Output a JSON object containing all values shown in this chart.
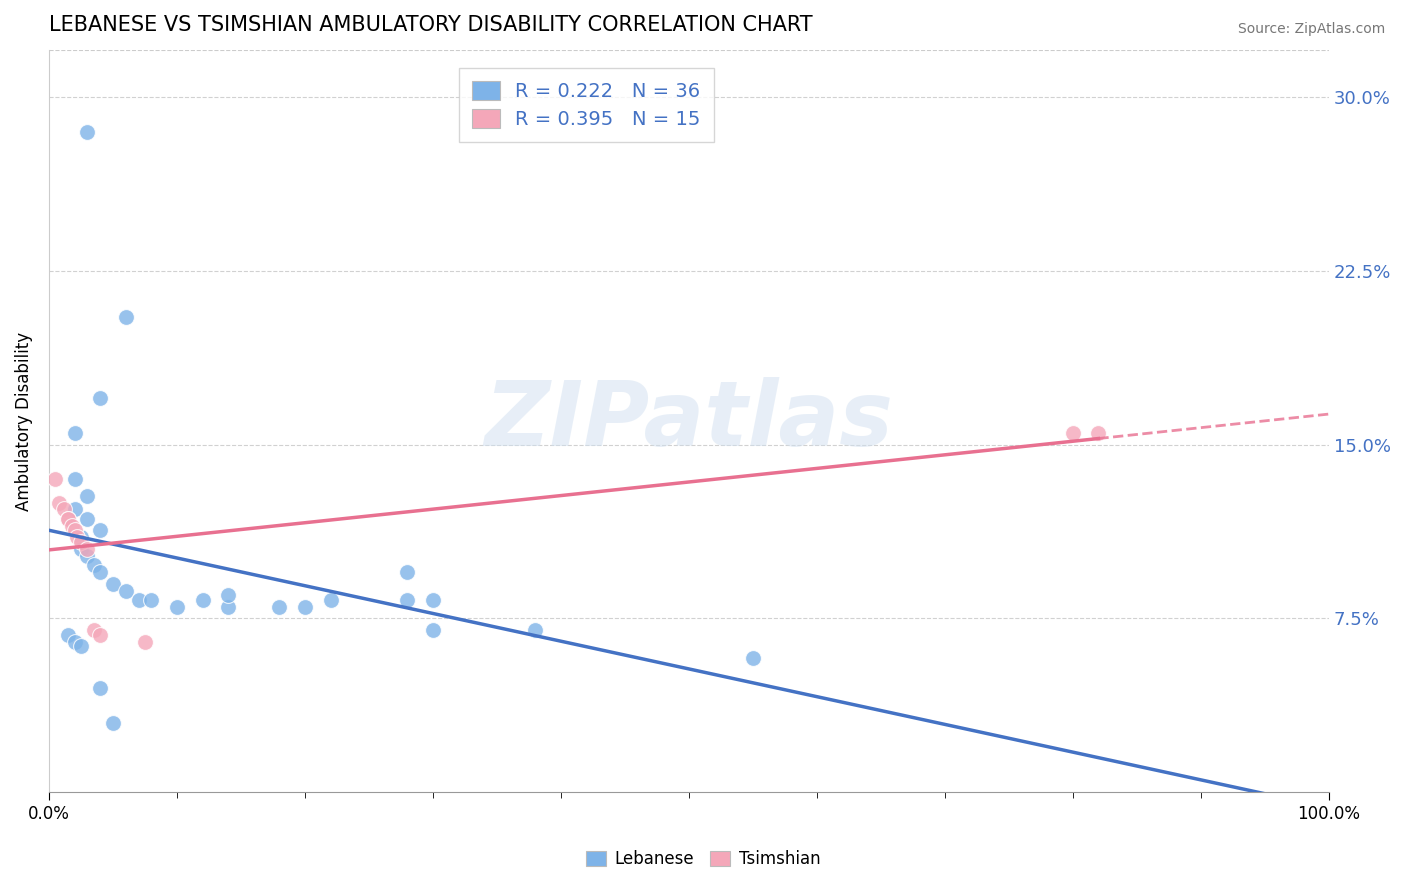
{
  "title": "LEBANESE VS TSIMSHIAN AMBULATORY DISABILITY CORRELATION CHART",
  "source": "Source: ZipAtlas.com",
  "ylabel": "Ambulatory Disability",
  "xlim": [
    0.0,
    1.0
  ],
  "ylim": [
    0.0,
    0.32
  ],
  "yticks": [
    0.075,
    0.15,
    0.225,
    0.3
  ],
  "ytick_labels": [
    "7.5%",
    "15.0%",
    "22.5%",
    "30.0%"
  ],
  "legend_R1": "R = 0.222",
  "legend_N1": "N = 36",
  "legend_R2": "R = 0.395",
  "legend_N2": "N = 15",
  "color_lebanese": "#7EB3E8",
  "color_tsimshian": "#F4A7B9",
  "color_line_lebanese": "#4472C4",
  "color_line_tsimshian": "#E87090",
  "lebanese_x": [
    0.03,
    0.06,
    0.04,
    0.02,
    0.02,
    0.03,
    0.02,
    0.03,
    0.04,
    0.025,
    0.025,
    0.03,
    0.035,
    0.04,
    0.05,
    0.06,
    0.07,
    0.08,
    0.1,
    0.12,
    0.14,
    0.14,
    0.18,
    0.2,
    0.22,
    0.28,
    0.28,
    0.3,
    0.3,
    0.38,
    0.015,
    0.02,
    0.025,
    0.55,
    0.04,
    0.05
  ],
  "lebanese_y": [
    0.285,
    0.205,
    0.17,
    0.155,
    0.135,
    0.128,
    0.122,
    0.118,
    0.113,
    0.11,
    0.105,
    0.102,
    0.098,
    0.095,
    0.09,
    0.087,
    0.083,
    0.083,
    0.08,
    0.083,
    0.08,
    0.085,
    0.08,
    0.08,
    0.083,
    0.083,
    0.095,
    0.083,
    0.07,
    0.07,
    0.068,
    0.065,
    0.063,
    0.058,
    0.045,
    0.03
  ],
  "tsimshian_x": [
    0.005,
    0.008,
    0.012,
    0.015,
    0.015,
    0.018,
    0.02,
    0.022,
    0.025,
    0.03,
    0.035,
    0.04,
    0.075,
    0.8,
    0.82
  ],
  "tsimshian_y": [
    0.135,
    0.125,
    0.122,
    0.118,
    0.118,
    0.115,
    0.113,
    0.11,
    0.108,
    0.105,
    0.07,
    0.068,
    0.065,
    0.155,
    0.155
  ]
}
